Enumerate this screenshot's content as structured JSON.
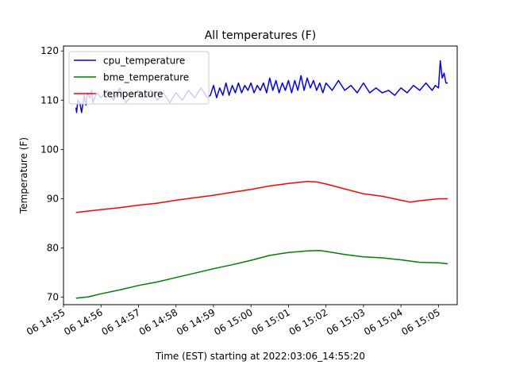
{
  "chart_data": {
    "type": "line",
    "title": "All temperatures (F)",
    "xlabel": "Time (EST) starting at 2022:03:06_14:55:20",
    "ylabel": "Temperature (F)",
    "x_ticks": [
      "06 14:55",
      "06 14:56",
      "06 14:57",
      "06 14:58",
      "06 14:59",
      "06 15:00",
      "06 15:01",
      "06 15:02",
      "06 15:03",
      "06 15:04",
      "06 15:05"
    ],
    "y_ticks": [
      70,
      80,
      90,
      100,
      110,
      120
    ],
    "xlim": [
      "2022-03-06 14:55:00",
      "2022-03-06 15:05:30"
    ],
    "ylim": [
      68.5,
      121
    ],
    "grid": false,
    "legend_position": "top-left",
    "series": [
      {
        "name": "cpu_temperature",
        "color": "#0000ff",
        "x": [
          "2022-03-06 14:55:20",
          "2022-03-06 14:55:21",
          "2022-03-06 14:55:23",
          "2022-03-06 14:55:26",
          "2022-03-06 14:55:29",
          "2022-03-06 14:55:33",
          "2022-03-06 14:55:36",
          "2022-03-06 14:55:38",
          "2022-03-06 14:55:42",
          "2022-03-06 14:55:45",
          "2022-03-06 14:55:47",
          "2022-03-06 14:55:50",
          "2022-03-06 14:55:54",
          "2022-03-06 14:56:00",
          "2022-03-06 14:56:10",
          "2022-03-06 14:56:20",
          "2022-03-06 14:56:30",
          "2022-03-06 14:56:40",
          "2022-03-06 14:56:50",
          "2022-03-06 14:57:00",
          "2022-03-06 14:57:10",
          "2022-03-06 14:57:20",
          "2022-03-06 14:57:30",
          "2022-03-06 14:57:40",
          "2022-03-06 14:57:50",
          "2022-03-06 14:58:00",
          "2022-03-06 14:58:10",
          "2022-03-06 14:58:20",
          "2022-03-06 14:58:30",
          "2022-03-06 14:58:40",
          "2022-03-06 14:58:50",
          "2022-03-06 14:58:55",
          "2022-03-06 14:59:00",
          "2022-03-06 14:59:05",
          "2022-03-06 14:59:10",
          "2022-03-06 14:59:15",
          "2022-03-06 14:59:20",
          "2022-03-06 14:59:25",
          "2022-03-06 14:59:30",
          "2022-03-06 14:59:35",
          "2022-03-06 14:59:40",
          "2022-03-06 14:59:45",
          "2022-03-06 14:59:50",
          "2022-03-06 14:59:55",
          "2022-03-06 15:00:00",
          "2022-03-06 15:00:05",
          "2022-03-06 15:00:10",
          "2022-03-06 15:00:15",
          "2022-03-06 15:00:20",
          "2022-03-06 15:00:25",
          "2022-03-06 15:00:30",
          "2022-03-06 15:00:35",
          "2022-03-06 15:00:40",
          "2022-03-06 15:00:45",
          "2022-03-06 15:00:50",
          "2022-03-06 15:00:55",
          "2022-03-06 15:01:00",
          "2022-03-06 15:01:05",
          "2022-03-06 15:01:10",
          "2022-03-06 15:01:15",
          "2022-03-06 15:01:20",
          "2022-03-06 15:01:25",
          "2022-03-06 15:01:30",
          "2022-03-06 15:01:35",
          "2022-03-06 15:01:40",
          "2022-03-06 15:01:45",
          "2022-03-06 15:01:50",
          "2022-03-06 15:01:55",
          "2022-03-06 15:02:00",
          "2022-03-06 15:02:10",
          "2022-03-06 15:02:20",
          "2022-03-06 15:02:30",
          "2022-03-06 15:02:40",
          "2022-03-06 15:02:50",
          "2022-03-06 15:03:00",
          "2022-03-06 15:03:10",
          "2022-03-06 15:03:20",
          "2022-03-06 15:03:30",
          "2022-03-06 15:03:40",
          "2022-03-06 15:03:50",
          "2022-03-06 15:04:00",
          "2022-03-06 15:04:10",
          "2022-03-06 15:04:20",
          "2022-03-06 15:04:30",
          "2022-03-06 15:04:40",
          "2022-03-06 15:04:50",
          "2022-03-06 15:04:55",
          "2022-03-06 15:05:00",
          "2022-03-06 15:05:03",
          "2022-03-06 15:05:06",
          "2022-03-06 15:05:09",
          "2022-03-06 15:05:12",
          "2022-03-06 15:05:15"
        ],
        "y": [
          108.5,
          107.5,
          110.0,
          109.5,
          107.5,
          111.0,
          109.0,
          111.5,
          110.5,
          112.0,
          109.5,
          110.5,
          111.5,
          110.5,
          112.0,
          110.0,
          112.5,
          109.5,
          111.0,
          112.0,
          110.5,
          112.0,
          110.0,
          111.5,
          109.5,
          111.5,
          110.0,
          112.0,
          110.5,
          112.5,
          110.5,
          111.0,
          113.0,
          110.5,
          112.5,
          111.0,
          113.5,
          111.0,
          113.0,
          111.5,
          113.5,
          111.5,
          113.0,
          112.0,
          113.5,
          111.5,
          113.0,
          112.0,
          113.5,
          111.5,
          114.5,
          112.0,
          114.0,
          111.5,
          113.5,
          112.0,
          114.0,
          111.5,
          114.0,
          112.0,
          115.0,
          112.0,
          114.5,
          112.5,
          114.0,
          112.0,
          113.5,
          111.5,
          113.5,
          112.0,
          114.0,
          112.0,
          113.0,
          111.5,
          113.5,
          111.5,
          112.5,
          111.5,
          112.0,
          111.0,
          112.5,
          111.5,
          113.0,
          112.0,
          113.5,
          112.0,
          113.0,
          112.5,
          118.0,
          114.5,
          115.5,
          113.5,
          113.5
        ]
      },
      {
        "name": "bme_temperature",
        "color": "#008000",
        "x": [
          "2022-03-06 14:55:20",
          "2022-03-06 14:55:40",
          "2022-03-06 14:56:00",
          "2022-03-06 14:56:30",
          "2022-03-06 14:57:00",
          "2022-03-06 14:57:30",
          "2022-03-06 14:58:00",
          "2022-03-06 14:58:30",
          "2022-03-06 14:59:00",
          "2022-03-06 14:59:30",
          "2022-03-06 15:00:00",
          "2022-03-06 15:00:30",
          "2022-03-06 15:01:00",
          "2022-03-06 15:01:30",
          "2022-03-06 15:01:50",
          "2022-03-06 15:02:00",
          "2022-03-06 15:02:30",
          "2022-03-06 15:03:00",
          "2022-03-06 15:03:30",
          "2022-03-06 15:04:00",
          "2022-03-06 15:04:30",
          "2022-03-06 15:05:00",
          "2022-03-06 15:05:15"
        ],
        "y": [
          69.8,
          70.1,
          70.7,
          71.5,
          72.4,
          73.1,
          74.0,
          74.9,
          75.8,
          76.6,
          77.5,
          78.5,
          79.1,
          79.4,
          79.5,
          79.3,
          78.7,
          78.2,
          78.0,
          77.6,
          77.1,
          77.0,
          76.8
        ]
      },
      {
        "name": "temperature",
        "color": "#ff0000",
        "x": [
          "2022-03-06 14:55:20",
          "2022-03-06 14:55:40",
          "2022-03-06 14:56:00",
          "2022-03-06 14:56:30",
          "2022-03-06 14:57:00",
          "2022-03-06 14:57:30",
          "2022-03-06 14:58:00",
          "2022-03-06 14:58:30",
          "2022-03-06 14:59:00",
          "2022-03-06 14:59:30",
          "2022-03-06 15:00:00",
          "2022-03-06 15:00:30",
          "2022-03-06 15:01:00",
          "2022-03-06 15:01:30",
          "2022-03-06 15:01:45",
          "2022-03-06 15:02:00",
          "2022-03-06 15:02:30",
          "2022-03-06 15:03:00",
          "2022-03-06 15:03:30",
          "2022-03-06 15:04:00",
          "2022-03-06 15:04:15",
          "2022-03-06 15:04:30",
          "2022-03-06 15:05:00",
          "2022-03-06 15:05:15"
        ],
        "y": [
          87.2,
          87.5,
          87.8,
          88.2,
          88.7,
          89.1,
          89.7,
          90.2,
          90.7,
          91.3,
          91.9,
          92.6,
          93.1,
          93.5,
          93.4,
          93.0,
          92.0,
          91.0,
          90.5,
          89.7,
          89.3,
          89.6,
          90.0,
          90.0
        ]
      }
    ]
  }
}
